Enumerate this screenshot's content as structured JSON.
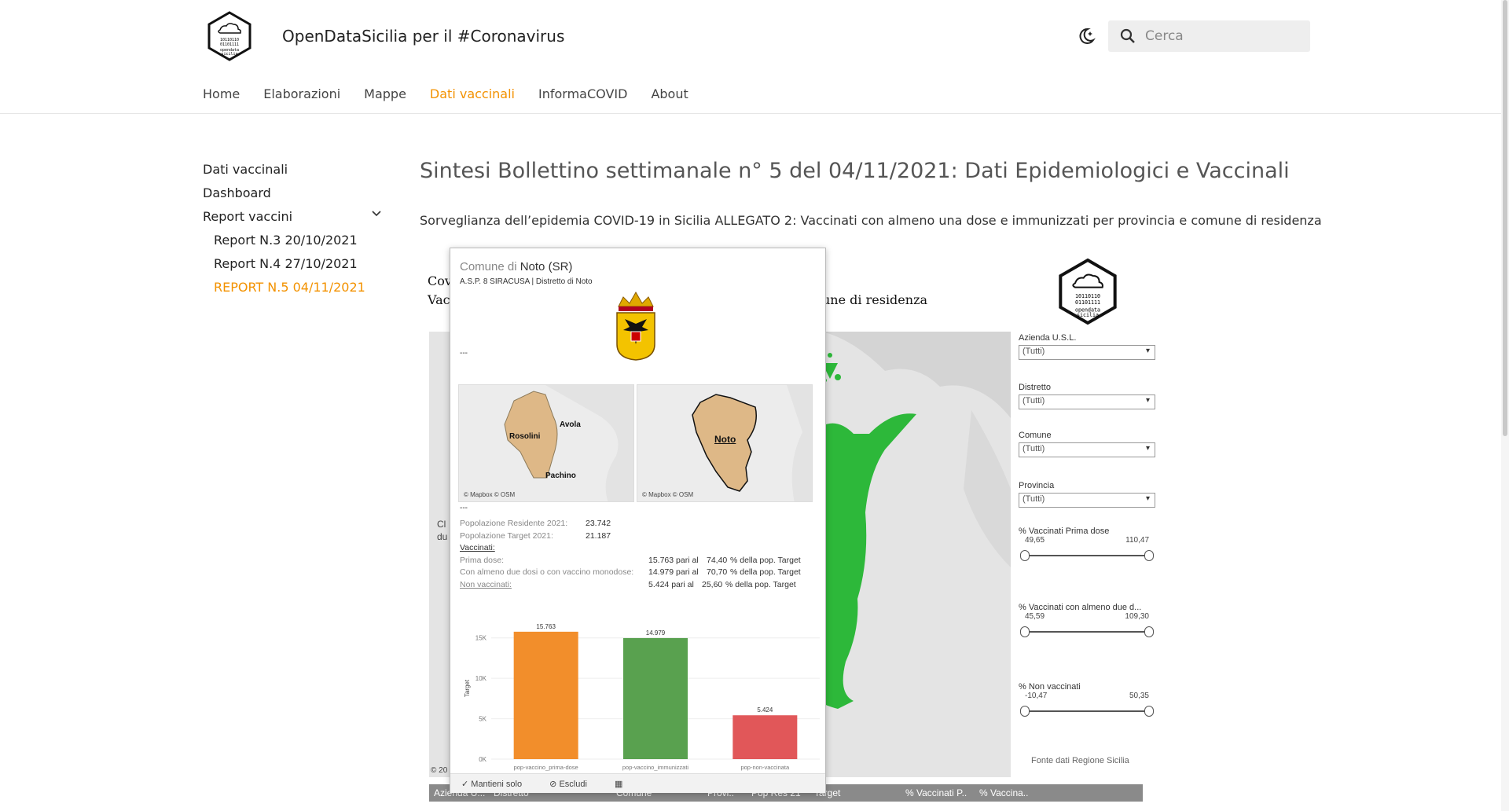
{
  "header": {
    "site_title": "OpenDataSicilia per il #Coronavirus",
    "search_placeholder": "Cerca",
    "logo_text": "opendata sicilia"
  },
  "nav": [
    "Home",
    "Elaborazioni",
    "Mappe",
    "Dati vaccinali",
    "InformaCOVID",
    "About"
  ],
  "nav_active": "Dati vaccinali",
  "sidebar": {
    "items": [
      "Dati vaccinali",
      "Dashboard",
      "Report vaccini"
    ],
    "subitems": [
      "Report N.3 20/10/2021",
      "Report N.4 27/10/2021",
      "REPORT N.5 04/11/2021"
    ]
  },
  "main": {
    "title": "Sintesi Bollettino settimanale n° 5 del 04/11/2021: Dati Epidemiologici e Vaccinali",
    "description": "Sorveglianza dell’epidemia COVID-19 in Sicilia ALLEGATO 2: Vaccinati con almeno una dose e immunizzati per provincia e comune di residenza"
  },
  "viz": {
    "partial_title_1": "Cov",
    "partial_title_2": "Vac",
    "partial_title_right": "une di residenza",
    "partial_left_1": "Cl",
    "partial_left_2": "du",
    "partial_copyright": "© 20",
    "filters": [
      {
        "label": "Azienda U.S.L.",
        "value": "(Tutti)"
      },
      {
        "label": "Distretto",
        "value": "(Tutti)"
      },
      {
        "label": "Comune",
        "value": "(Tutti)"
      },
      {
        "label": "Provincia",
        "value": "(Tutti)"
      }
    ],
    "ranges": [
      {
        "label": "% Vaccinati Prima dose",
        "min": "49,65",
        "max": "110,47"
      },
      {
        "label": "% Vaccinati con almeno due d...",
        "min": "45,59",
        "max": "109,30"
      },
      {
        "label": "% Non vaccinati",
        "min": "-10,47",
        "max": "50,35"
      }
    ],
    "fonte": "Fonte dati Regione Sicilia",
    "table_headers": [
      "Azienda U...",
      "Distretto",
      "Comune",
      "Provi..",
      "Pop Res 21",
      "Target",
      "% Vaccinati P..",
      "% Vaccina.."
    ]
  },
  "tooltip": {
    "prefix": "Comune di",
    "comune": "Noto (SR)",
    "subtitle": "A.S.P. 8 SIRACUSA | Distretto di Noto",
    "sep": "---",
    "map_left_labels": [
      "Avola",
      "Rosolini",
      "Pachino"
    ],
    "map_right_label": "Noto",
    "map_credit": "© Mapbox © OSM",
    "pop_res_label": "Popolazione Residente 2021:",
    "pop_res": "23.742",
    "pop_target_label": "Popolazione Target  2021:",
    "pop_target": "21.187",
    "vaccinati_label": "Vaccinati:",
    "prima_label": "Prima dose:",
    "prima_val": "15.763 pari al",
    "prima_pct": "74,40",
    "prima_suffix": "% della pop. Target",
    "due_label": "Con almeno due dosi o con vaccino monodose:",
    "due_val": "14.979 pari al",
    "due_pct": "70,70",
    "due_suffix": "% della pop. Target",
    "non_label": "Non vaccinati:",
    "non_val": "5.424 pari al",
    "non_pct": "25,60",
    "non_suffix": "% della pop. Target",
    "footer": [
      "Mantieni solo",
      "Escludi"
    ]
  },
  "chart_data": {
    "type": "bar",
    "categories": [
      "pop-vaccino_prima-dose",
      "pop-vaccino_immunizzati",
      "pop-non-vaccinata"
    ],
    "values": [
      15763,
      14979,
      5424
    ],
    "value_labels": [
      "15.763",
      "14.979",
      "5.424"
    ],
    "colors": [
      "#f28e2b",
      "#59a14f",
      "#e15759"
    ],
    "ylabel": "Target",
    "yticks": [
      "0K",
      "5K",
      "10K",
      "15K"
    ],
    "ylim": [
      0,
      17500
    ]
  }
}
